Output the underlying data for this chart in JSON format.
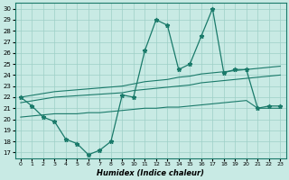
{
  "background_color": "#c8eae4",
  "grid_color": "#9ecfc7",
  "line_color": "#1a7a6a",
  "x_label": "Humidex (Indice chaleur)",
  "x_ticks": [
    0,
    1,
    2,
    3,
    4,
    5,
    6,
    7,
    8,
    9,
    10,
    11,
    12,
    13,
    14,
    15,
    16,
    17,
    18,
    19,
    20,
    21,
    22,
    23
  ],
  "y_ticks": [
    17,
    18,
    19,
    20,
    21,
    22,
    23,
    24,
    25,
    26,
    27,
    28,
    29,
    30
  ],
  "ylim": [
    16.5,
    30.5
  ],
  "xlim": [
    -0.5,
    23.5
  ],
  "series1_x": [
    0,
    1,
    2,
    3,
    4,
    5,
    6,
    7,
    8,
    9,
    10,
    11,
    12,
    13,
    14,
    15,
    16,
    17,
    18,
    19,
    20,
    21,
    22,
    23
  ],
  "series1_y": [
    22.0,
    21.2,
    20.2,
    19.8,
    18.2,
    17.8,
    16.8,
    17.2,
    18.0,
    22.2,
    22.0,
    26.2,
    29.0,
    28.5,
    24.5,
    25.0,
    27.5,
    30.0,
    24.2,
    24.5,
    24.5,
    21.0,
    21.2,
    21.2
  ],
  "series2_x": [
    0,
    3,
    9,
    10,
    11,
    12,
    13,
    14,
    15,
    16,
    17,
    18,
    19,
    20,
    23
  ],
  "series2_y": [
    22.0,
    22.5,
    23.0,
    23.2,
    23.4,
    23.5,
    23.6,
    23.8,
    23.9,
    24.1,
    24.2,
    24.3,
    24.4,
    24.5,
    24.8
  ],
  "series3_x": [
    0,
    3,
    9,
    10,
    11,
    12,
    13,
    14,
    15,
    16,
    17,
    18,
    19,
    20,
    23
  ],
  "series3_y": [
    21.5,
    22.0,
    22.4,
    22.6,
    22.7,
    22.8,
    22.9,
    23.0,
    23.1,
    23.3,
    23.4,
    23.5,
    23.6,
    23.7,
    24.0
  ],
  "series4_x": [
    0,
    1,
    2,
    3,
    4,
    5,
    6,
    7,
    8,
    9,
    10,
    11,
    12,
    13,
    14,
    15,
    16,
    17,
    18,
    19,
    20,
    21,
    22,
    23
  ],
  "series4_y": [
    20.2,
    20.3,
    20.4,
    20.5,
    20.5,
    20.5,
    20.6,
    20.6,
    20.7,
    20.8,
    20.9,
    21.0,
    21.0,
    21.1,
    21.1,
    21.2,
    21.3,
    21.4,
    21.5,
    21.6,
    21.7,
    21.0,
    21.0,
    21.0
  ]
}
